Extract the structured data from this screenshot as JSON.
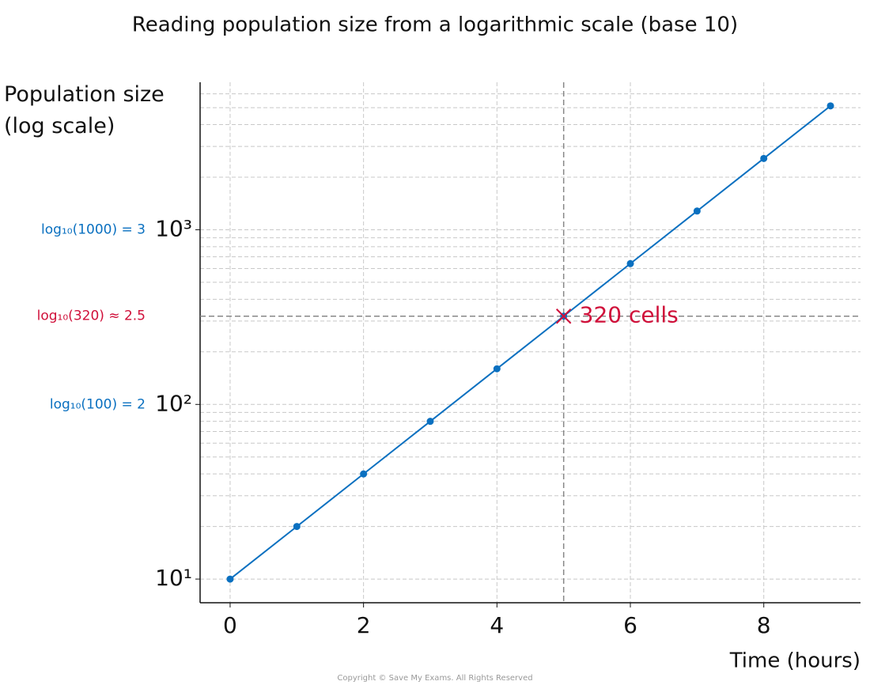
{
  "chart_data": {
    "type": "line",
    "title": "Reading population size from a logarithmic scale (base 10)",
    "xlabel": "Time (hours)",
    "ylabel": "Population size (log scale)",
    "log_y": true,
    "grid": true,
    "series": [
      {
        "color": "#0a70c0",
        "x": [
          0,
          1,
          2,
          3,
          4,
          5,
          6,
          7,
          8,
          9
        ],
        "values": [
          10,
          20,
          40,
          80,
          160,
          320,
          640,
          1280,
          2560,
          5120
        ]
      }
    ],
    "xlim": [
      -0.45,
      9.45
    ],
    "xticks": [
      0,
      2,
      4,
      6,
      8
    ],
    "ylim": [
      7.32,
      6990
    ],
    "yticks": [
      {
        "value": 10,
        "label": "10¹"
      },
      {
        "value": 100,
        "label": "10²"
      },
      {
        "value": 1000,
        "label": "10³"
      }
    ],
    "yminorticks": [
      20,
      30,
      40,
      50,
      60,
      70,
      80,
      90,
      200,
      300,
      400,
      500,
      600,
      700,
      800,
      900,
      2000,
      3000,
      4000,
      5000,
      6000
    ],
    "reference": {
      "x": 5,
      "y": 320,
      "label": "320 cells",
      "color": "#d0103a"
    },
    "annotations": [
      {
        "text": "log₁₀(1000) = 3",
        "y": 1000,
        "color": "#0a70c0"
      },
      {
        "text": "log₁₀(320) ≈ 2.5",
        "y": 320,
        "color": "#d0103a"
      },
      {
        "text": "log₁₀(100) = 2",
        "y": 100,
        "color": "#0a70c0"
      }
    ],
    "footer": "Copyright © Save My Exams. All Rights Reserved"
  }
}
